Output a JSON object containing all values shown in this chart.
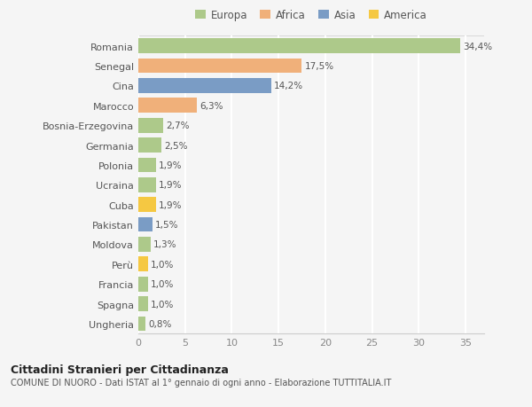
{
  "countries": [
    "Romania",
    "Senegal",
    "Cina",
    "Marocco",
    "Bosnia-Erzegovina",
    "Germania",
    "Polonia",
    "Ucraina",
    "Cuba",
    "Pakistan",
    "Moldova",
    "Perù",
    "Francia",
    "Spagna",
    "Ungheria"
  ],
  "values": [
    34.4,
    17.5,
    14.2,
    6.3,
    2.7,
    2.5,
    1.9,
    1.9,
    1.9,
    1.5,
    1.3,
    1.0,
    1.0,
    1.0,
    0.8
  ],
  "labels": [
    "34,4%",
    "17,5%",
    "14,2%",
    "6,3%",
    "2,7%",
    "2,5%",
    "1,9%",
    "1,9%",
    "1,9%",
    "1,5%",
    "1,3%",
    "1,0%",
    "1,0%",
    "1,0%",
    "0,8%"
  ],
  "continents": [
    "Europa",
    "Africa",
    "Asia",
    "Africa",
    "Europa",
    "Europa",
    "Europa",
    "Europa",
    "America",
    "Asia",
    "Europa",
    "America",
    "Europa",
    "Europa",
    "Europa"
  ],
  "colors": {
    "Europa": "#adc98a",
    "Africa": "#f0b07a",
    "Asia": "#7a9cc5",
    "America": "#f5c842"
  },
  "legend_order": [
    "Europa",
    "Africa",
    "Asia",
    "America"
  ],
  "xlim": [
    0,
    37
  ],
  "xticks": [
    0,
    5,
    10,
    15,
    20,
    25,
    30,
    35
  ],
  "title1": "Cittadini Stranieri per Cittadinanza",
  "title2": "COMUNE DI NUORO - Dati ISTAT al 1° gennaio di ogni anno - Elaborazione TUTTITALIA.IT",
  "bg_color": "#f5f5f5",
  "grid_color": "#ffffff",
  "bar_height": 0.75
}
